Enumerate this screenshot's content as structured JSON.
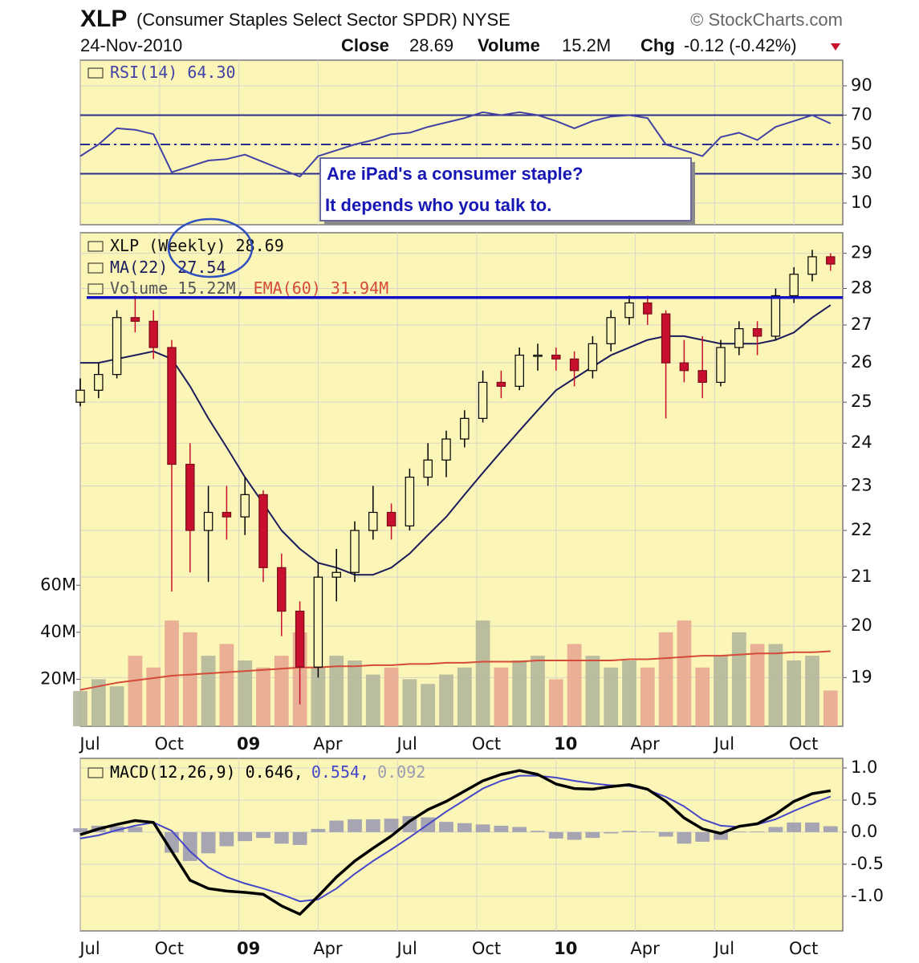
{
  "header": {
    "symbol": "XLP",
    "name": "(Consumer Staples Select Sector SPDR) NYSE",
    "source": "© StockCharts.com",
    "date": "24-Nov-2010",
    "close_label": "Close",
    "close": "28.69",
    "volume_label": "Volume",
    "volume": "15.2M",
    "chg_label": "Chg",
    "chg": "-0.12 (-0.42%)"
  },
  "chart_data": [
    {
      "type": "line",
      "ylim": [
        -4.8,
        107.5
      ],
      "yticks": [
        10,
        30,
        50,
        70,
        90
      ],
      "grid": true,
      "x": [
        0,
        3,
        6,
        9,
        12,
        15,
        18,
        21,
        24,
        27,
        30,
        33,
        36,
        39,
        42,
        45,
        48,
        51,
        54,
        57,
        60,
        63,
        66,
        69,
        72,
        75,
        78,
        81,
        84,
        87,
        90,
        93,
        96,
        99,
        102,
        105,
        108,
        111,
        114,
        117,
        120,
        123
      ],
      "xlim": [
        0,
        125
      ],
      "ref_lines": [
        {
          "value": 70,
          "dash": false
        },
        {
          "value": 50,
          "dash": true
        },
        {
          "value": 30,
          "dash": false
        }
      ],
      "annotations": [
        "Are iPad's a consumer staple?",
        "It depends who you talk to."
      ],
      "series": [
        {
          "type": "line",
          "name": "RSI(14) 64.30",
          "color": "#4242a6",
          "values": [
            42,
            50,
            61,
            60,
            57,
            31,
            35,
            39,
            40,
            43,
            38,
            33,
            28,
            42,
            46,
            50,
            53,
            57,
            58,
            62,
            65,
            68,
            72,
            70,
            72,
            70,
            66,
            61,
            66,
            69,
            70,
            68,
            50,
            46,
            42,
            55,
            58,
            53,
            62,
            66,
            70,
            64.3
          ]
        }
      ]
    },
    {
      "type": "candlestick",
      "log": true,
      "ylim": [
        18.1,
        29.6
      ],
      "yticks": [
        19,
        20,
        21,
        22,
        23,
        24,
        25,
        26,
        27,
        28,
        29
      ],
      "y2lim": [
        0,
        210
      ],
      "y2ticks": [
        {
          "value": 20,
          "label": "20M"
        },
        {
          "value": 40,
          "label": "40M"
        },
        {
          "value": 60,
          "label": "60M"
        }
      ],
      "grid": true,
      "xlim": [
        0,
        125
      ],
      "xticks": [
        {
          "value": 0,
          "label": "Jul"
        },
        {
          "value": 13,
          "label": "Oct"
        },
        {
          "value": 26,
          "label": "09"
        },
        {
          "value": 39,
          "label": "Apr"
        },
        {
          "value": 52,
          "label": "Jul"
        },
        {
          "value": 65,
          "label": "Oct"
        },
        {
          "value": 78,
          "label": "10"
        },
        {
          "value": 91,
          "label": "Apr"
        },
        {
          "value": 104,
          "label": "Jul"
        },
        {
          "value": 117,
          "label": "Oct"
        }
      ],
      "x": [
        0,
        3,
        6,
        9,
        12,
        15,
        18,
        21,
        24,
        27,
        30,
        33,
        36,
        39,
        42,
        45,
        48,
        51,
        54,
        57,
        60,
        63,
        66,
        69,
        72,
        75,
        78,
        81,
        84,
        87,
        90,
        93,
        96,
        99,
        102,
        105,
        108,
        111,
        114,
        117,
        120,
        123
      ],
      "hlines": [
        {
          "value": 27.75,
          "color": "#1212c4"
        }
      ],
      "series": [
        {
          "type": "bar",
          "axis": "y2",
          "name": "Volume 15.22M,",
          "color": "#555555",
          "up_color": "#b3b79b",
          "down_color": "#e8a892",
          "values": [
            15,
            20,
            17,
            30,
            25,
            45,
            40,
            30,
            35,
            28,
            25,
            30,
            40,
            25,
            30,
            28,
            22,
            25,
            20,
            18,
            22,
            25,
            45,
            25,
            28,
            30,
            20,
            35,
            30,
            25,
            28,
            25,
            40,
            45,
            25,
            30,
            40,
            35,
            35,
            28,
            30,
            15.22
          ]
        },
        {
          "type": "line",
          "axis": "y2",
          "name": "EMA(60) 31.94M",
          "color": "#d64a38",
          "values": [
            15.5,
            17,
            18.5,
            19.5,
            20.5,
            21.5,
            22,
            22.5,
            23,
            23.5,
            24,
            24.5,
            25,
            25,
            25.5,
            25.5,
            26,
            26,
            26.5,
            26.5,
            27,
            27,
            27.5,
            27.5,
            27.5,
            28,
            28,
            28,
            28,
            28,
            28.5,
            28.5,
            29,
            29.5,
            30,
            30,
            30.5,
            31,
            31,
            31.5,
            31.5,
            31.94
          ]
        },
        {
          "type": "line",
          "name": "MA(22) 27.54",
          "color": "#1c1c5c",
          "values": [
            26.0,
            26.0,
            26.1,
            26.2,
            26.3,
            26.1,
            25.4,
            24.6,
            23.9,
            23.2,
            22.6,
            22.0,
            21.6,
            21.3,
            21.2,
            21.05,
            21.05,
            21.2,
            21.5,
            21.9,
            22.3,
            22.8,
            23.3,
            23.8,
            24.3,
            24.8,
            25.3,
            25.6,
            25.9,
            26.2,
            26.4,
            26.6,
            26.7,
            26.7,
            26.6,
            26.5,
            26.5,
            26.5,
            26.6,
            26.8,
            27.2,
            27.54
          ]
        },
        {
          "type": "candlestick",
          "name": "XLP (Weekly) 28.69",
          "color": "#111111",
          "up_color": "#000000",
          "down_color": "#c8102e",
          "open": [
            25.0,
            25.3,
            25.7,
            27.2,
            27.1,
            26.4,
            23.5,
            22.0,
            22.4,
            22.3,
            22.8,
            21.2,
            20.3,
            19.2,
            21.0,
            21.1,
            22.0,
            22.4,
            22.1,
            23.2,
            23.6,
            24.1,
            24.6,
            25.5,
            25.4,
            26.2,
            26.2,
            26.1,
            25.8,
            26.5,
            27.2,
            27.6,
            27.3,
            26.0,
            25.8,
            25.5,
            26.4,
            26.9,
            26.7,
            27.8,
            28.4,
            28.9
          ],
          "high": [
            25.6,
            26.0,
            27.4,
            27.8,
            27.4,
            26.6,
            24.0,
            23.0,
            23.0,
            23.2,
            22.9,
            21.5,
            20.5,
            21.3,
            21.6,
            22.2,
            23.0,
            22.6,
            23.4,
            24.0,
            24.3,
            24.8,
            25.8,
            25.8,
            26.4,
            26.5,
            26.4,
            26.3,
            26.7,
            27.4,
            27.8,
            27.8,
            27.4,
            26.6,
            26.7,
            26.6,
            27.1,
            27.1,
            28.0,
            28.6,
            29.1,
            29.0
          ],
          "low": [
            24.9,
            25.1,
            25.6,
            26.8,
            26.1,
            20.7,
            21.1,
            20.9,
            21.8,
            21.9,
            20.9,
            19.8,
            18.5,
            19.0,
            20.5,
            20.9,
            21.8,
            21.8,
            22.0,
            23.0,
            23.2,
            23.9,
            24.5,
            25.1,
            25.3,
            25.8,
            25.8,
            25.4,
            25.6,
            26.3,
            27.0,
            27.0,
            24.6,
            25.5,
            25.1,
            25.4,
            26.2,
            26.2,
            26.6,
            27.6,
            28.2,
            28.5
          ],
          "close": [
            25.3,
            25.7,
            27.2,
            27.1,
            26.4,
            23.5,
            22.0,
            22.4,
            22.3,
            22.8,
            21.2,
            20.3,
            19.2,
            21.0,
            21.1,
            22.0,
            22.4,
            22.1,
            23.2,
            23.6,
            24.1,
            24.6,
            25.5,
            25.4,
            26.2,
            26.2,
            26.1,
            25.8,
            26.5,
            27.2,
            27.6,
            27.3,
            26.0,
            25.8,
            25.5,
            26.4,
            26.9,
            26.7,
            27.8,
            28.4,
            28.9,
            28.69
          ]
        }
      ]
    },
    {
      "type": "line",
      "ylim": [
        -1.54,
        1.15
      ],
      "yticks": [
        {
          "value": 1,
          "label": "1.0"
        },
        0.5,
        {
          "value": 0,
          "label": "0.0"
        },
        -0.5,
        {
          "value": -1,
          "label": "-1.0"
        }
      ],
      "grid": true,
      "xlim": [
        0,
        125
      ],
      "xticks": [
        {
          "value": 0,
          "label": "Jul"
        },
        {
          "value": 13,
          "label": "Oct"
        },
        {
          "value": 26,
          "label": "09"
        },
        {
          "value": 39,
          "label": "Apr"
        },
        {
          "value": 52,
          "label": "Jul"
        },
        {
          "value": 65,
          "label": "Oct"
        },
        {
          "value": 78,
          "label": "10"
        },
        {
          "value": 91,
          "label": "Apr"
        },
        {
          "value": 104,
          "label": "Jul"
        },
        {
          "value": 117,
          "label": "Oct"
        }
      ],
      "x": [
        0,
        3,
        6,
        9,
        12,
        15,
        18,
        21,
        24,
        27,
        30,
        33,
        36,
        39,
        42,
        45,
        48,
        51,
        54,
        57,
        60,
        63,
        66,
        69,
        72,
        75,
        78,
        81,
        84,
        87,
        90,
        93,
        96,
        99,
        102,
        105,
        108,
        111,
        114,
        117,
        120,
        123
      ],
      "series": [
        {
          "type": "bar",
          "name": "0.092",
          "color": "#9c9cb0",
          "values": [
            0.06,
            0.1,
            0.09,
            0.08,
            0.0,
            -0.32,
            -0.45,
            -0.33,
            -0.22,
            -0.14,
            -0.09,
            -0.18,
            -0.2,
            0.05,
            0.18,
            0.2,
            0.2,
            0.21,
            0.25,
            0.23,
            0.16,
            0.14,
            0.12,
            0.1,
            0.08,
            0.02,
            -0.1,
            -0.12,
            -0.09,
            -0.02,
            0.02,
            0.01,
            -0.07,
            -0.18,
            -0.15,
            -0.12,
            0.01,
            0.01,
            0.08,
            0.15,
            0.15,
            0.092
          ]
        },
        {
          "type": "line",
          "name": "0.554,",
          "color": "#4646c8",
          "values": [
            -0.1,
            -0.05,
            0.03,
            0.1,
            0.15,
            0.02,
            -0.3,
            -0.55,
            -0.7,
            -0.8,
            -0.88,
            -0.97,
            -1.08,
            -1.05,
            -0.88,
            -0.65,
            -0.45,
            -0.27,
            -0.08,
            0.12,
            0.32,
            0.5,
            0.68,
            0.8,
            0.88,
            0.88,
            0.85,
            0.8,
            0.76,
            0.73,
            0.72,
            0.66,
            0.55,
            0.4,
            0.2,
            0.1,
            0.08,
            0.12,
            0.2,
            0.33,
            0.45,
            0.554
          ]
        },
        {
          "type": "line",
          "name": "MACD(12,26,9) 0.646,",
          "color": "#000000",
          "values": [
            -0.04,
            0.05,
            0.12,
            0.18,
            0.15,
            -0.3,
            -0.75,
            -0.88,
            -0.92,
            -0.94,
            -0.97,
            -1.15,
            -1.28,
            -1.0,
            -0.7,
            -0.45,
            -0.25,
            -0.06,
            0.17,
            0.35,
            0.48,
            0.64,
            0.8,
            0.9,
            0.96,
            0.9,
            0.75,
            0.68,
            0.67,
            0.71,
            0.74,
            0.67,
            0.48,
            0.22,
            0.05,
            -0.02,
            0.09,
            0.13,
            0.28,
            0.48,
            0.6,
            0.646
          ]
        }
      ]
    }
  ]
}
